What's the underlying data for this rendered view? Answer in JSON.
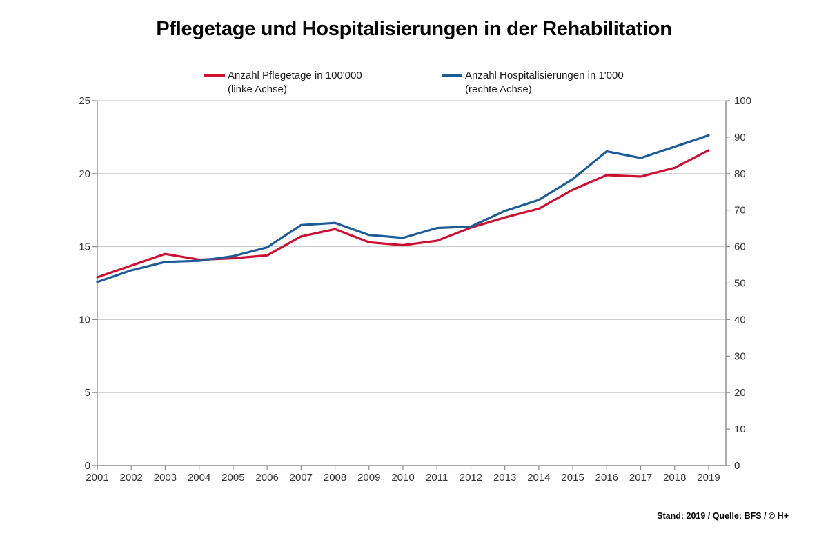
{
  "page": {
    "background_color": "#FFFFFF"
  },
  "source_note": "Stand: 2019 / Quelle: BFS / © H+",
  "chart_data": {
    "type": "line",
    "title": "Pflegetage und Hospitalisierungen in der Rehabilitation",
    "x": [
      2001,
      2002,
      2003,
      2004,
      2005,
      2006,
      2007,
      2008,
      2009,
      2010,
      2011,
      2012,
      2013,
      2014,
      2015,
      2016,
      2017,
      2018,
      2019
    ],
    "series": [
      {
        "name": "Anzahl Pflegetage in 100'000",
        "axis_note": "(linke Achse)",
        "axis": "left",
        "color": "#CD0F32",
        "values": [
          12.9,
          13.7,
          14.5,
          14.1,
          14.2,
          14.4,
          15.7,
          16.2,
          15.3,
          15.1,
          15.4,
          16.3,
          17.0,
          17.6,
          18.9,
          19.9,
          19.8,
          20.4,
          21.6
        ]
      },
      {
        "name": "Anzahl Hospitalisierungen in 1'000",
        "axis_note": "(rechte Achse)",
        "axis": "right",
        "color": "#1E5C99",
        "values": [
          50.3,
          53.5,
          55.8,
          56.1,
          57.4,
          59.8,
          65.9,
          66.5,
          63.2,
          62.4,
          65.1,
          65.5,
          69.8,
          72.8,
          78.5,
          86.1,
          84.3,
          87.4,
          90.5
        ]
      }
    ],
    "left_axis": {
      "min": 0,
      "max": 25,
      "ticks": [
        0,
        5,
        10,
        15,
        20,
        25
      ]
    },
    "right_axis": {
      "min": 0,
      "max": 100,
      "ticks": [
        0,
        10,
        20,
        30,
        40,
        50,
        60,
        70,
        80,
        90,
        100
      ]
    },
    "grid": {
      "horizontal": true,
      "vertical": false,
      "color": "#C7C7C7"
    },
    "axis_color": "#8A8A8A",
    "tick_label_color": "#333333",
    "legend_position": "top"
  }
}
